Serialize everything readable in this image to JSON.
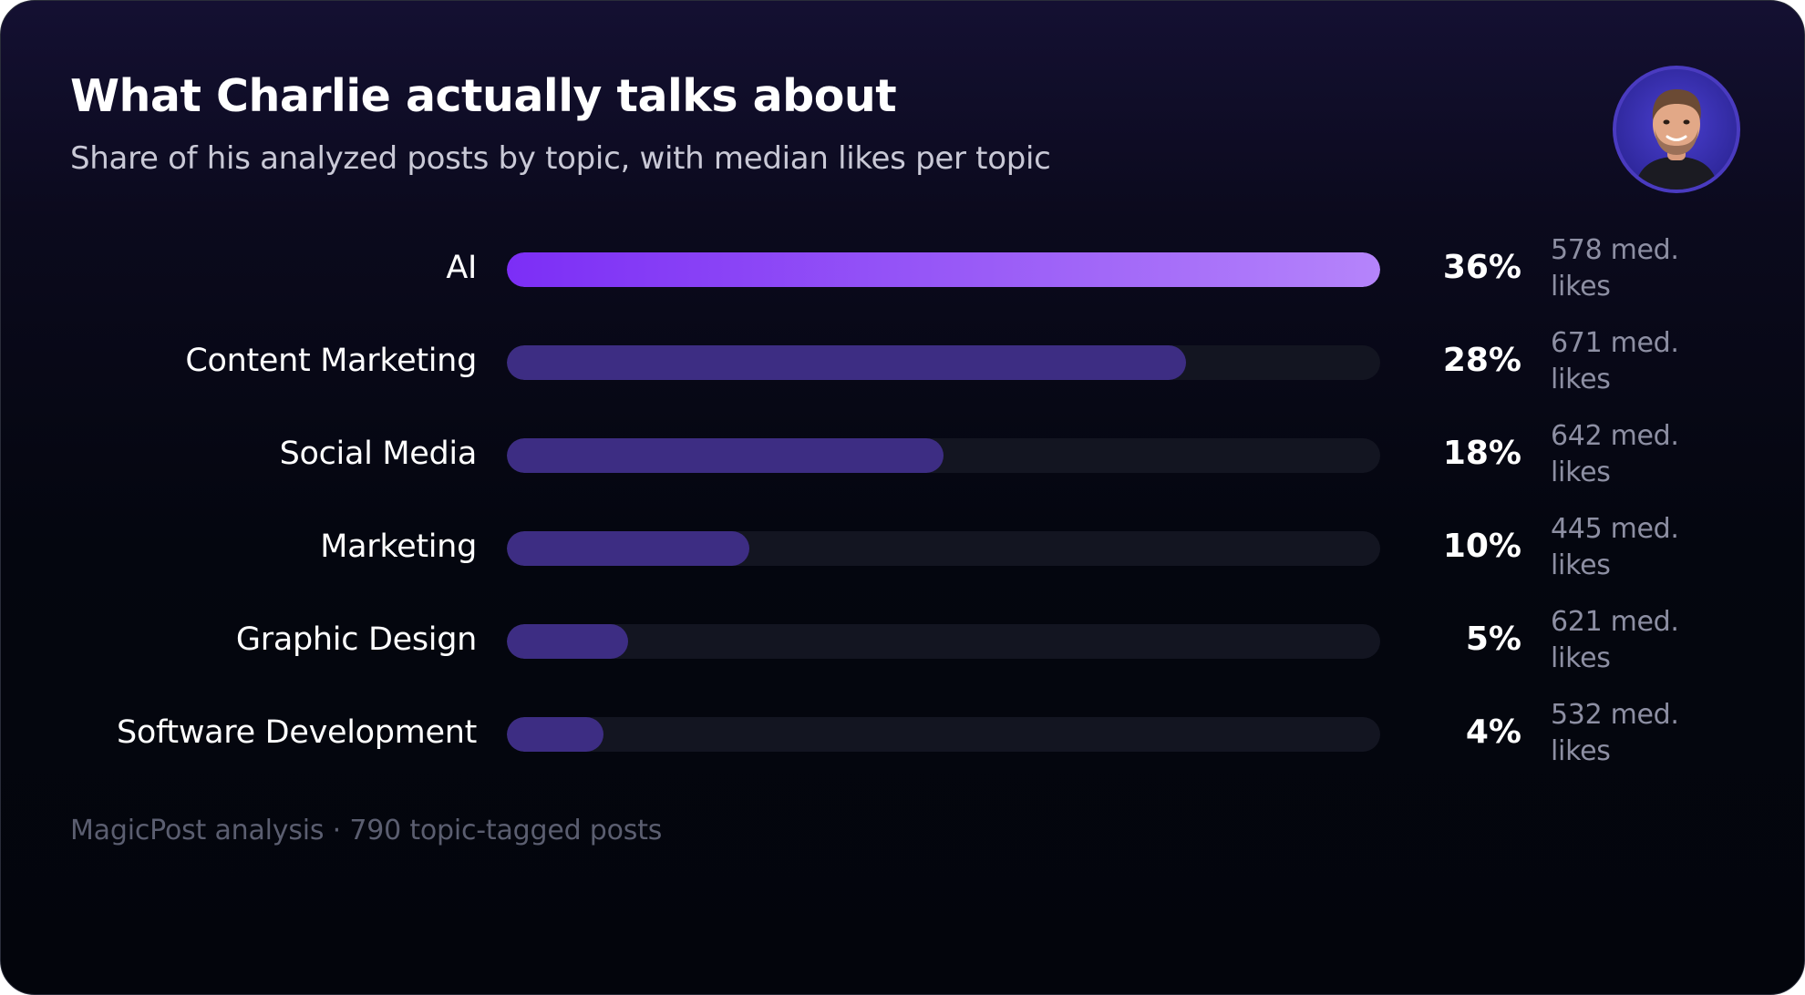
{
  "title": "What Charlie actually talks about",
  "subtitle": "Share of his analyzed posts by topic, with median likes per topic",
  "footer": "MagicPost analysis · 790 topic-tagged posts",
  "avatar": {
    "icon": "profile-photo"
  },
  "colors": {
    "accent_start": "#7c2ef6",
    "accent_end": "#b584fb",
    "bar": "#3d2d83",
    "track": "#131521",
    "background": "#04060f"
  },
  "likes_unit": "med. likes",
  "chart_data": {
    "type": "bar",
    "orientation": "horizontal",
    "title": "What Charlie actually talks about",
    "subtitle": "Share of his analyzed posts by topic, with median likes per topic",
    "categories": [
      "AI",
      "Content Marketing",
      "Social Media",
      "Marketing",
      "Graphic Design",
      "Software Development"
    ],
    "values": [
      36,
      28,
      18,
      10,
      5,
      4
    ],
    "value_labels": [
      "36%",
      "28%",
      "18%",
      "10%",
      "5%",
      "4%"
    ],
    "median_likes": [
      578,
      671,
      642,
      445,
      621,
      532
    ],
    "median_likes_labels": [
      "578 med. likes",
      "671 med. likes",
      "642 med. likes",
      "445 med. likes",
      "621 med. likes",
      "532 med. likes"
    ],
    "xlim": [
      0,
      36
    ],
    "grid": false,
    "legend": "none"
  }
}
